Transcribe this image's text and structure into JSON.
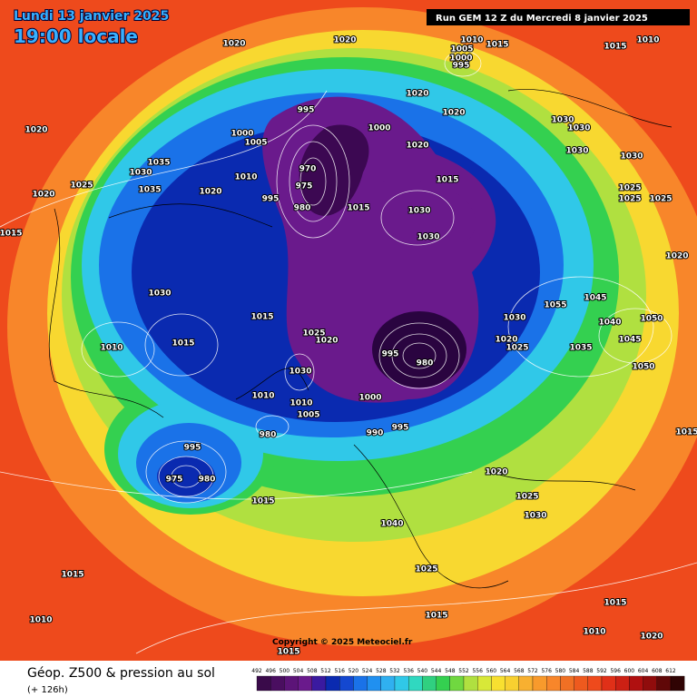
{
  "header": {
    "date": "Lundi 13 janvier 2025",
    "time": "19:00 locale",
    "run": "Run GEM 12 Z du Mercredi 8 janvier 2025"
  },
  "map": {
    "isobar_labels": [
      1020,
      1020,
      1010,
      1015,
      1015,
      1010,
      1005,
      1000,
      995,
      1020,
      1035,
      1030,
      1025,
      1035,
      1020,
      1020,
      1015,
      995,
      1000,
      1005,
      1000,
      1020,
      1020,
      1020,
      1030,
      1030,
      1030,
      1015,
      1030,
      1025,
      1025,
      1025,
      970,
      975,
      1010,
      995,
      980,
      1015,
      1030,
      1030,
      1020,
      1030,
      1045,
      1055,
      1030,
      1040,
      1050,
      1045,
      1015,
      1010,
      1015,
      1025,
      1020,
      1020,
      1025,
      1035,
      995,
      980,
      1030,
      1050,
      1010,
      1010,
      1005,
      1000,
      980,
      990,
      995,
      1015,
      995,
      975,
      980,
      1020,
      1025,
      1015,
      1030,
      1040,
      1015,
      1025,
      1010,
      1015,
      1015,
      1015,
      1010,
      1020
    ],
    "copyright": "Copyright © 2025 Meteociel.fr"
  },
  "footer": {
    "title": "Géop. Z500 & pression au sol",
    "subtitle": "(+ 126h)",
    "colorbar": [
      492,
      496,
      500,
      504,
      508,
      512,
      516,
      520,
      524,
      528,
      532,
      536,
      540,
      544,
      548,
      552,
      556,
      560,
      564,
      568,
      572,
      576,
      580,
      584,
      588,
      592,
      596,
      600,
      604,
      608,
      612
    ]
  }
}
